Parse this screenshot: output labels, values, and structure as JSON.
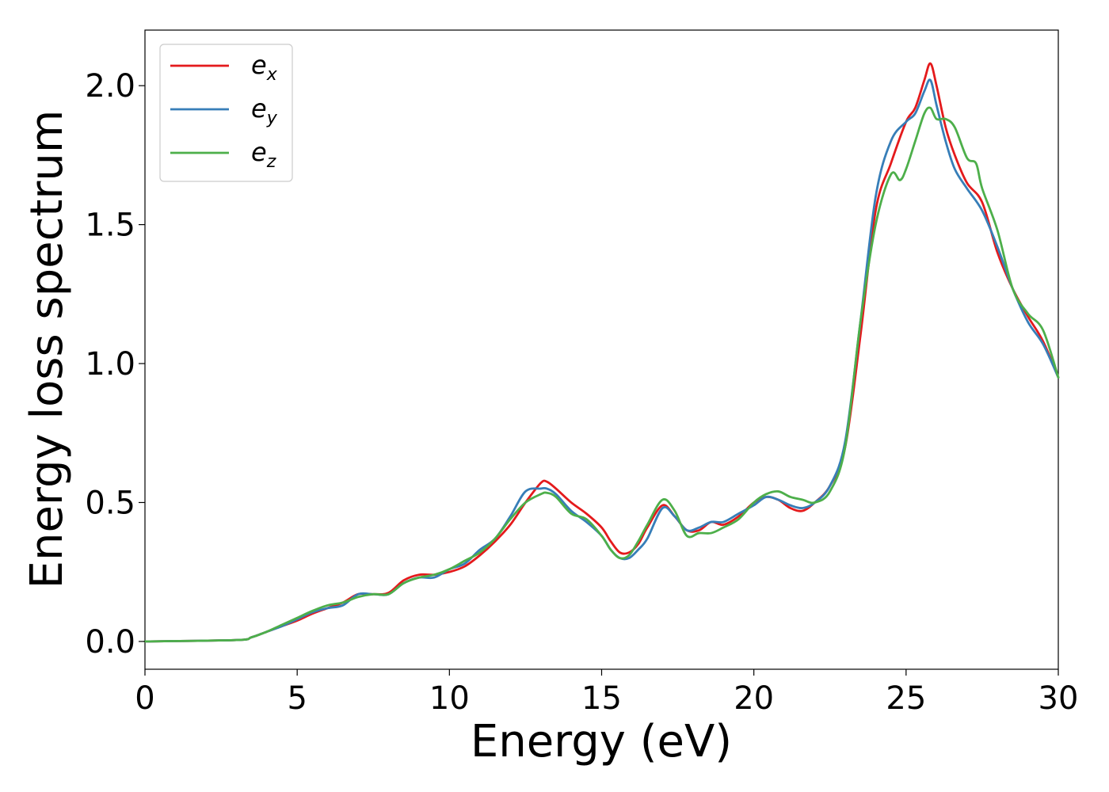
{
  "chart_data": {
    "type": "line",
    "xlabel": "Energy (eV)",
    "ylabel": "Energy loss spectrum",
    "xlim": [
      0,
      30
    ],
    "ylim": [
      -0.1,
      2.2
    ],
    "xticks": [
      0,
      5,
      10,
      15,
      20,
      25,
      30
    ],
    "xtick_labels": [
      "0",
      "5",
      "10",
      "15",
      "20",
      "25",
      "30"
    ],
    "yticks": [
      0.0,
      0.5,
      1.0,
      1.5,
      2.0
    ],
    "ytick_labels": [
      "0.0",
      "0.5",
      "1.0",
      "1.5",
      "2.0"
    ],
    "grid": false,
    "legend_position": "top-left",
    "series": [
      {
        "name": "e_x",
        "legend_base": "e",
        "legend_sub": "x",
        "color": "#e41a1c",
        "x": [
          0,
          3,
          3.5,
          4,
          4.5,
          5,
          5.5,
          6,
          6.5,
          7,
          7.5,
          8,
          8.5,
          9,
          9.5,
          10,
          10.5,
          11,
          11.5,
          12,
          12.5,
          13,
          13.2,
          13.5,
          14,
          14.5,
          15,
          15.3,
          15.6,
          15.9,
          16.2,
          16.5,
          17,
          17.4,
          17.8,
          18.2,
          18.6,
          19,
          19.5,
          20,
          20.4,
          20.8,
          21.2,
          21.6,
          22,
          22.5,
          23,
          23.5,
          24,
          24.5,
          25,
          25.3,
          25.6,
          25.8,
          26,
          26.3,
          26.6,
          27,
          27.5,
          28,
          28.5,
          29,
          29.5,
          30
        ],
        "y": [
          0.0,
          0.005,
          0.015,
          0.035,
          0.055,
          0.075,
          0.1,
          0.12,
          0.14,
          0.17,
          0.17,
          0.175,
          0.22,
          0.24,
          0.24,
          0.25,
          0.27,
          0.31,
          0.36,
          0.42,
          0.5,
          0.57,
          0.575,
          0.55,
          0.5,
          0.46,
          0.41,
          0.36,
          0.32,
          0.32,
          0.35,
          0.41,
          0.49,
          0.45,
          0.4,
          0.4,
          0.43,
          0.42,
          0.45,
          0.5,
          0.52,
          0.51,
          0.48,
          0.47,
          0.5,
          0.56,
          0.7,
          1.1,
          1.55,
          1.72,
          1.87,
          1.92,
          2.02,
          2.08,
          2.0,
          1.85,
          1.75,
          1.65,
          1.58,
          1.4,
          1.27,
          1.17,
          1.08,
          0.95
        ]
      },
      {
        "name": "e_y",
        "legend_base": "e",
        "legend_sub": "y",
        "color": "#377eb8",
        "x": [
          0,
          3,
          3.5,
          4,
          4.5,
          5,
          5.5,
          6,
          6.5,
          7,
          7.5,
          8,
          8.5,
          9,
          9.5,
          10,
          10.5,
          11,
          11.5,
          12,
          12.5,
          13,
          13.2,
          13.5,
          14,
          14.5,
          15,
          15.3,
          15.6,
          15.9,
          16.2,
          16.5,
          17,
          17.4,
          17.8,
          18.2,
          18.6,
          19,
          19.5,
          20,
          20.4,
          20.8,
          21.2,
          21.6,
          22,
          22.5,
          23,
          23.5,
          24,
          24.5,
          25,
          25.3,
          25.6,
          25.8,
          26,
          26.3,
          26.6,
          27,
          27.5,
          28,
          28.5,
          29,
          29.5,
          30
        ],
        "y": [
          0.0,
          0.005,
          0.015,
          0.035,
          0.055,
          0.08,
          0.105,
          0.12,
          0.13,
          0.17,
          0.17,
          0.17,
          0.21,
          0.23,
          0.23,
          0.26,
          0.28,
          0.33,
          0.37,
          0.45,
          0.54,
          0.55,
          0.55,
          0.53,
          0.47,
          0.43,
          0.38,
          0.33,
          0.3,
          0.3,
          0.33,
          0.37,
          0.48,
          0.45,
          0.4,
          0.41,
          0.43,
          0.43,
          0.46,
          0.49,
          0.52,
          0.51,
          0.49,
          0.48,
          0.5,
          0.56,
          0.72,
          1.15,
          1.6,
          1.8,
          1.87,
          1.9,
          1.98,
          2.02,
          1.93,
          1.8,
          1.7,
          1.63,
          1.55,
          1.42,
          1.27,
          1.15,
          1.07,
          0.95
        ]
      },
      {
        "name": "e_z",
        "legend_base": "e",
        "legend_sub": "z",
        "color": "#4daf4a",
        "x": [
          0,
          3,
          3.5,
          4,
          4.5,
          5,
          5.5,
          6,
          6.5,
          7,
          7.5,
          8,
          8.5,
          9,
          9.5,
          10,
          10.5,
          11,
          11.5,
          12,
          12.5,
          13,
          13.2,
          13.5,
          14,
          14.5,
          15,
          15.3,
          15.6,
          15.9,
          16.2,
          16.5,
          17,
          17.4,
          17.8,
          18.2,
          18.6,
          19,
          19.5,
          20,
          20.4,
          20.8,
          21.2,
          21.6,
          22,
          22.5,
          23,
          23.5,
          24,
          24.5,
          24.8,
          25,
          25.3,
          25.6,
          25.8,
          26,
          26.3,
          26.6,
          27,
          27.3,
          27.5,
          28,
          28.5,
          29,
          29.5,
          30
        ],
        "y": [
          0.0,
          0.005,
          0.015,
          0.035,
          0.06,
          0.085,
          0.11,
          0.13,
          0.14,
          0.16,
          0.17,
          0.17,
          0.21,
          0.23,
          0.24,
          0.26,
          0.29,
          0.32,
          0.37,
          0.44,
          0.5,
          0.53,
          0.535,
          0.52,
          0.46,
          0.44,
          0.38,
          0.33,
          0.3,
          0.31,
          0.36,
          0.42,
          0.51,
          0.47,
          0.38,
          0.39,
          0.39,
          0.41,
          0.44,
          0.5,
          0.53,
          0.54,
          0.52,
          0.51,
          0.5,
          0.54,
          0.7,
          1.15,
          1.5,
          1.68,
          1.66,
          1.7,
          1.8,
          1.9,
          1.92,
          1.88,
          1.88,
          1.85,
          1.74,
          1.72,
          1.63,
          1.48,
          1.27,
          1.18,
          1.12,
          0.95
        ]
      }
    ]
  }
}
